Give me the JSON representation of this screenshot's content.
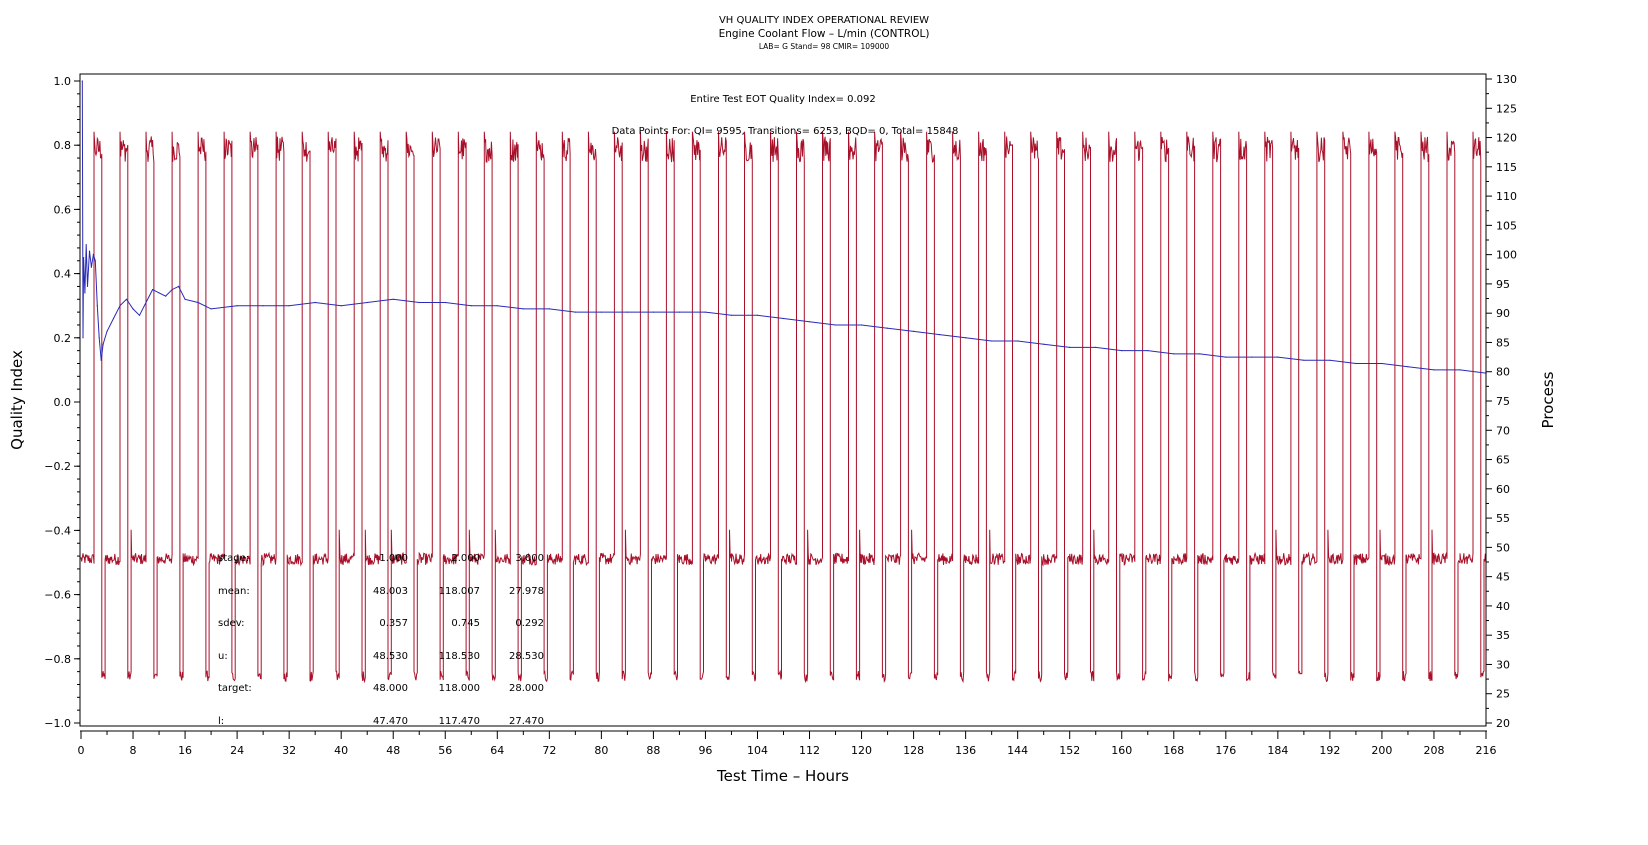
{
  "chart_data": {
    "type": "line",
    "title": "VH QUALITY INDEX OPERATIONAL REVIEW",
    "subtitle": "Engine Coolant Flow – L/min (CONTROL)",
    "subsubtitle": "LAB= G Stand= 98 CMIR= 109000",
    "xlabel": "Test Time – Hours",
    "ylabel_left": "Quality Index",
    "ylabel_right": "Process",
    "xlim": [
      0,
      216
    ],
    "ylim_left": [
      -1.0,
      1.0
    ],
    "ylim_right": [
      20,
      130
    ],
    "x_ticks": [
      "0",
      "8",
      "16",
      "24",
      "32",
      "40",
      "48",
      "56",
      "64",
      "72",
      "80",
      "88",
      "96",
      "104",
      "112",
      "120",
      "128",
      "136",
      "144",
      "152",
      "160",
      "168",
      "176",
      "184",
      "192",
      "200",
      "208",
      "216"
    ],
    "y_left_ticks": [
      "1.0",
      "0.8",
      "0.6",
      "0.4",
      "0.2",
      "0.0",
      "−0.2",
      "−0.4",
      "−0.6",
      "−0.8",
      "−1.0"
    ],
    "y_right_ticks": [
      "130",
      "125",
      "120",
      "115",
      "110",
      "105",
      "100",
      "95",
      "90",
      "85",
      "80",
      "75",
      "70",
      "65",
      "60",
      "55",
      "50",
      "45",
      "40",
      "35",
      "30",
      "25",
      "20"
    ],
    "annotations": {
      "eot": "Entire Test EOT Quality Index=   0.092",
      "points": "Data Points For: QI=  9595, Transitions=  6253, BQD=     0, Total= 15848"
    },
    "stats_table": {
      "rows": [
        {
          "label": "stage:",
          "values": [
            "1.000",
            "2.000",
            "3.000"
          ]
        },
        {
          "label": "mean:",
          "values": [
            "48.003",
            "118.007",
            "27.978"
          ]
        },
        {
          "label": "sdev:",
          "values": [
            "0.357",
            "0.745",
            "0.292"
          ]
        },
        {
          "label": "u:",
          "values": [
            "48.530",
            "118.530",
            "28.530"
          ]
        },
        {
          "label": "target:",
          "values": [
            "48.000",
            "118.000",
            "28.000"
          ]
        },
        {
          "label": "l:",
          "values": [
            "47.470",
            "117.470",
            "27.470"
          ]
        }
      ]
    },
    "series": [
      {
        "name": "Quality Index",
        "axis": "left",
        "color": "#2a2ab8",
        "x": [
          0.2,
          0.3,
          0.4,
          0.6,
          0.8,
          1.0,
          1.3,
          1.6,
          1.9,
          2.2,
          2.5,
          2.8,
          3.1,
          3.4,
          4.0,
          5.0,
          6.0,
          7.0,
          8.0,
          9.0,
          10.0,
          11.0,
          12.0,
          13.0,
          14.0,
          15.0,
          16.0,
          18.0,
          20.0,
          24.0,
          28.0,
          32.0,
          36.0,
          40.0,
          44.0,
          48.0,
          52.0,
          56.0,
          60.0,
          64.0,
          68.0,
          72.0,
          76.0,
          80.0,
          84.0,
          88.0,
          92.0,
          96.0,
          100.0,
          104.0,
          108.0,
          112.0,
          116.0,
          120.0,
          124.0,
          128.0,
          132.0,
          136.0,
          140.0,
          144.0,
          148.0,
          152.0,
          156.0,
          160.0,
          164.0,
          168.0,
          172.0,
          176.0,
          180.0,
          184.0,
          188.0,
          192.0,
          196.0,
          200.0,
          204.0,
          208.0,
          212.0,
          216.0
        ],
        "y": [
          1.0,
          0.2,
          0.45,
          0.34,
          0.49,
          0.36,
          0.47,
          0.42,
          0.46,
          0.44,
          0.3,
          0.2,
          0.13,
          0.18,
          0.22,
          0.26,
          0.3,
          0.32,
          0.29,
          0.27,
          0.31,
          0.35,
          0.34,
          0.33,
          0.35,
          0.36,
          0.32,
          0.31,
          0.29,
          0.3,
          0.3,
          0.3,
          0.31,
          0.3,
          0.31,
          0.32,
          0.31,
          0.31,
          0.3,
          0.3,
          0.29,
          0.29,
          0.28,
          0.28,
          0.28,
          0.28,
          0.28,
          0.28,
          0.27,
          0.27,
          0.26,
          0.25,
          0.24,
          0.24,
          0.23,
          0.22,
          0.21,
          0.2,
          0.19,
          0.19,
          0.18,
          0.17,
          0.17,
          0.16,
          0.16,
          0.15,
          0.15,
          0.14,
          0.14,
          0.14,
          0.13,
          0.13,
          0.12,
          0.12,
          0.11,
          0.1,
          0.1,
          0.09
        ]
      },
      {
        "name": "Process",
        "axis": "right",
        "color": "#a8102a",
        "pattern": "repeating 4-hour cycle: 48 then 118 then 28",
        "levels": [
          48,
          118,
          28
        ],
        "cycle_hours": 4,
        "x_start": 0,
        "x_end": 216
      }
    ]
  }
}
